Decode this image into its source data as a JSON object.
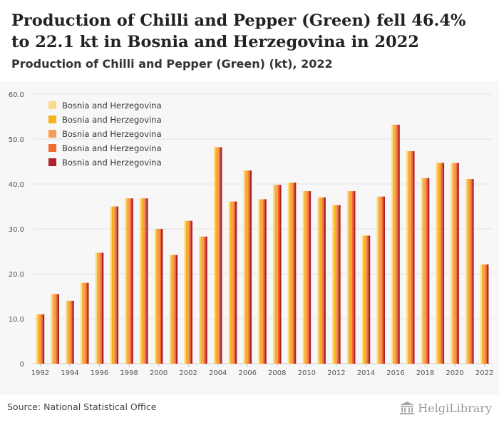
{
  "header": {
    "title": "Production of Chilli and Pepper (Green) fell 46.4% to 22.1 kt in Bosnia and Herzegovina in 2022",
    "subtitle": "Production of Chilli and Pepper (Green) (kt), 2022"
  },
  "footer": {
    "source": "Source: National Statistical Office",
    "logo_text": "HelgiLibrary"
  },
  "chart_data": {
    "type": "bar",
    "categories": [
      "1992",
      "1993",
      "1994",
      "1995",
      "1996",
      "1997",
      "1998",
      "1999",
      "2000",
      "2001",
      "2002",
      "2003",
      "2004",
      "2005",
      "2006",
      "2007",
      "2008",
      "2009",
      "2010",
      "2011",
      "2012",
      "2013",
      "2014",
      "2015",
      "2016",
      "2017",
      "2018",
      "2019",
      "2020",
      "2021",
      "2022"
    ],
    "x_tick_labels": [
      "1992",
      "1994",
      "1996",
      "1998",
      "2000",
      "2002",
      "2004",
      "2006",
      "2008",
      "2010",
      "2012",
      "2014",
      "2016",
      "2018",
      "2020",
      "2022"
    ],
    "y_ticks": [
      0,
      10,
      20,
      30,
      40,
      50,
      60
    ],
    "y_tick_labels": [
      "0",
      "10.0",
      "20.0",
      "30.0",
      "40.0",
      "50.0",
      "60.0"
    ],
    "ylim": [
      0,
      60
    ],
    "values": [
      11.0,
      15.5,
      14.0,
      18.0,
      24.7,
      35.0,
      36.8,
      36.8,
      30.0,
      24.2,
      31.8,
      28.3,
      48.2,
      36.1,
      43.0,
      36.6,
      39.8,
      40.3,
      38.4,
      37.0,
      35.3,
      38.4,
      28.5,
      37.2,
      53.2,
      47.3,
      41.3,
      44.7,
      44.7,
      41.1,
      22.1
    ],
    "series": [
      {
        "name": "Bosnia and Herzegovina",
        "color": "#fdd98a"
      },
      {
        "name": "Bosnia and Herzegovina",
        "color": "#f5b21a"
      },
      {
        "name": "Bosnia and Herzegovina",
        "color": "#f89d55"
      },
      {
        "name": "Bosnia and Herzegovina",
        "color": "#f26a33"
      },
      {
        "name": "Bosnia and Herzegovina",
        "color": "#b0232a"
      }
    ],
    "legend_position": "top-left",
    "grid": true
  }
}
